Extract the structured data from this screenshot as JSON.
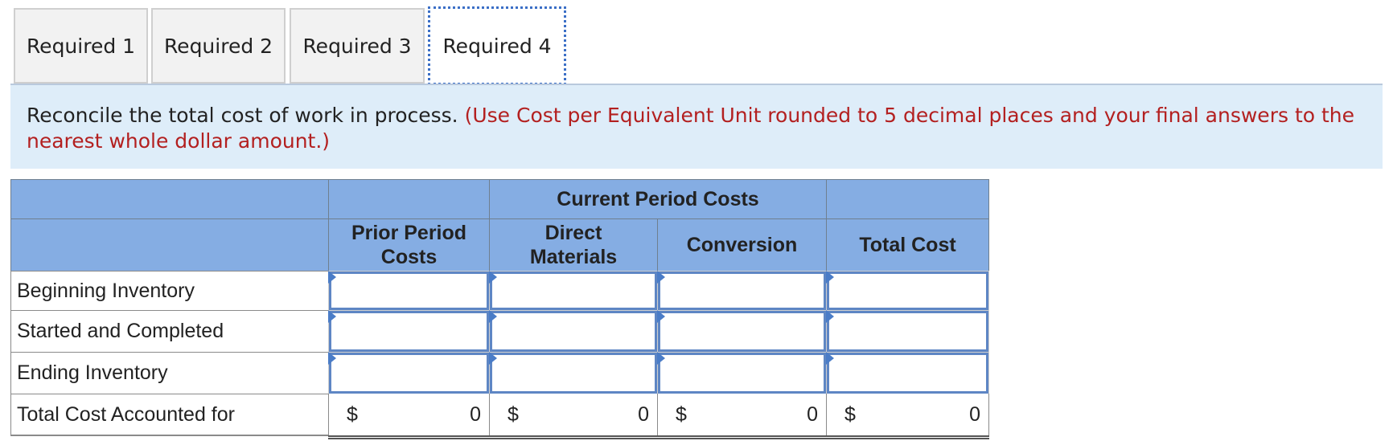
{
  "tabs": [
    "Required 1",
    "Required 2",
    "Required 3",
    "Required 4"
  ],
  "active_tab": "Required 4",
  "instruction": {
    "text": "Reconcile the total cost of work in process.",
    "note": "(Use Cost per Equivalent Unit rounded to 5 decimal places and your final answers to the nearest whole dollar amount.)"
  },
  "table": {
    "group_header": "Current Period Costs",
    "columns": [
      "Prior Period Costs",
      "Direct Materials",
      "Conversion",
      "Total Cost"
    ],
    "rows": [
      "Beginning Inventory",
      "Started and Completed",
      "Ending Inventory"
    ],
    "total_row": {
      "label": "Total Cost Accounted for",
      "currency": "$",
      "values": [
        "0",
        "0",
        "0",
        "0"
      ]
    }
  },
  "colors": {
    "header_bg": "#85ade3",
    "active_tab_border": "#3b6fc6",
    "note_red": "#b32020",
    "instruction_bg": "#deedf9"
  }
}
